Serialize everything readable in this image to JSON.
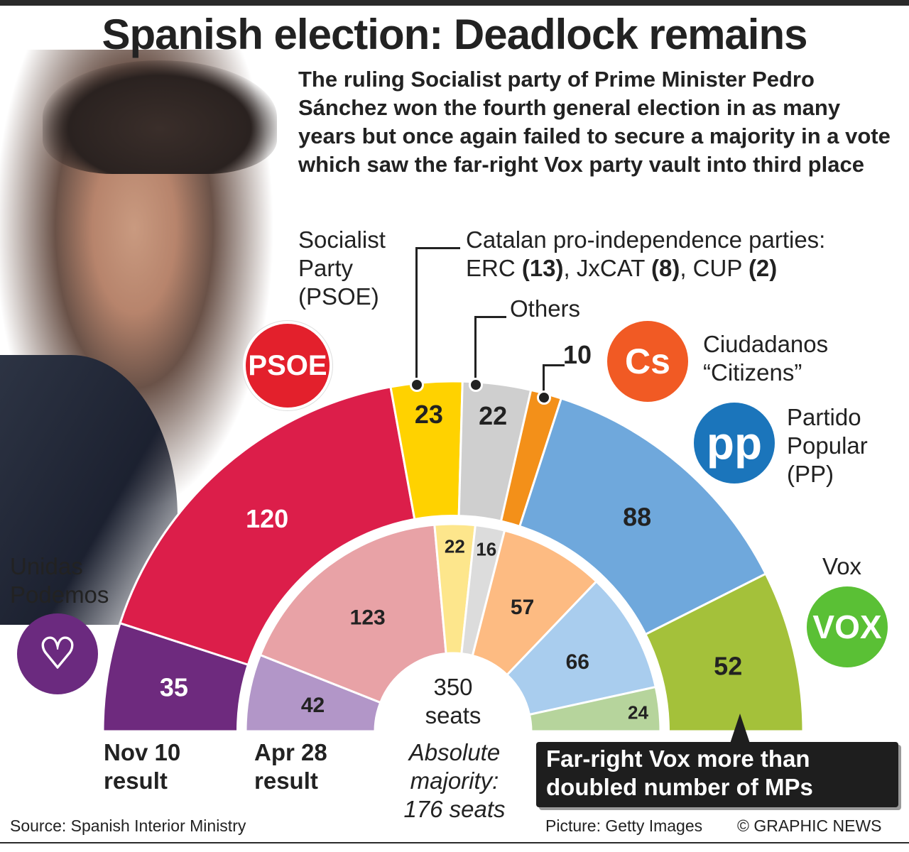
{
  "title": "Spanish election: Deadlock remains",
  "intro": "The ruling Socialist party of Prime Minister Pedro Sánchez won the fourth general election in as many years but once again failed to secure a majority in a vote which saw the far-right Vox party vault into third place",
  "labels": {
    "psoe_l1": "Socialist",
    "psoe_l2": "Party",
    "psoe_l3": "(PSOE)",
    "catalan_l1": "Catalan pro-independence parties:",
    "catalan_erc": "ERC ",
    "catalan_erc_n": "(13)",
    "catalan_jx": ", JxCAT ",
    "catalan_jx_n": "(8)",
    "catalan_cup": ", CUP ",
    "catalan_cup_n": "(2)",
    "others": "Others",
    "cs_seats": "10",
    "cs_l1": "Ciudadanos",
    "cs_l2": "“Citizens”",
    "pp_l1": "Partido",
    "pp_l2": "Popular",
    "pp_l3": "(PP)",
    "vox": "Vox",
    "podemos_l1": "Unidas",
    "podemos_l2": "Podemos"
  },
  "logos": {
    "psoe": "PSOE",
    "cs": "Cs",
    "pp": "pp",
    "vox": "VOX"
  },
  "center": {
    "l1": "350",
    "l2": "seats"
  },
  "majority": {
    "l1": "Absolute",
    "l2": "majority:",
    "l3": "176 seats"
  },
  "results": {
    "nov_l1": "Nov 10",
    "nov_l2": "result",
    "apr_l1": "Apr 28",
    "apr_l2": "result"
  },
  "callout": {
    "l1": "Far-right Vox more than",
    "l2": "doubled number of MPs"
  },
  "footer": {
    "source": "Source: Spanish Interior Ministry",
    "picture": "Picture: Getty Images",
    "copyright": "© GRAPHIC NEWS"
  },
  "chart_data": {
    "type": "pie",
    "subtype": "parliament-semicircle",
    "title": "Spanish election: Deadlock remains",
    "total_seats": 350,
    "categories": [
      "Unidas Podemos",
      "PSOE",
      "Catalan pro-independence",
      "Others",
      "Ciudadanos",
      "PP",
      "Vox"
    ],
    "series": [
      {
        "name": "Nov 10 result",
        "values": [
          35,
          120,
          23,
          22,
          10,
          88,
          52
        ],
        "colors": [
          "#6e2a7e",
          "#dc1e4a",
          "#ffd200",
          "#cfcfcf",
          "#f39019",
          "#6fa8dc",
          "#a4c13a"
        ]
      },
      {
        "name": "Apr 28 result",
        "values": [
          42,
          123,
          22,
          16,
          57,
          66,
          24
        ],
        "colors": [
          "#b296c8",
          "#e8a2a6",
          "#fde68c",
          "#dcdcdc",
          "#fdbb82",
          "#a9cdee",
          "#b6d49c"
        ]
      }
    ]
  }
}
